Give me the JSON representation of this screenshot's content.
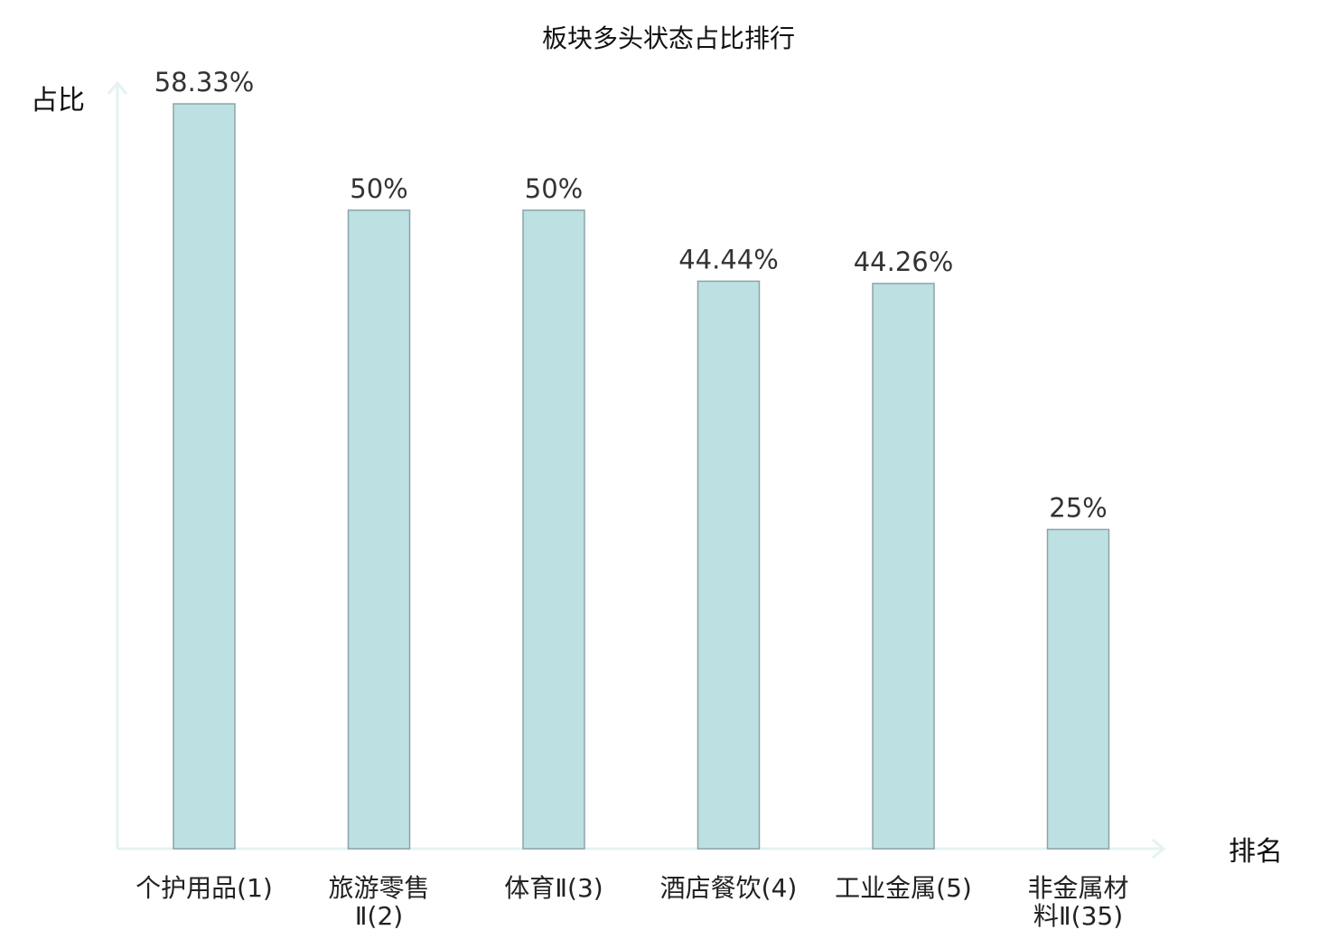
{
  "chart_data": {
    "type": "bar",
    "title": "板块多头状态占比排行",
    "ylabel": "占比",
    "xlabel": "排名",
    "categories": [
      [
        "个护用品(1)"
      ],
      [
        "旅游零售",
        "Ⅱ(2)"
      ],
      [
        "体育Ⅱ(3)"
      ],
      [
        "酒店餐饮(4)"
      ],
      [
        "工业金属(5)"
      ],
      [
        "非金属材",
        "料Ⅱ(35)"
      ]
    ],
    "values": [
      58.33,
      50,
      50,
      44.44,
      44.26,
      25
    ],
    "data_labels": [
      "58.33%",
      "50%",
      "50%",
      "44.44%",
      "44.26%",
      "25%"
    ],
    "highlight_index": 5,
    "ylim": [
      0,
      60
    ],
    "grid": false,
    "legend": "none"
  },
  "colors": {
    "bar_fill": "#bde0e3",
    "bar_stroke": "#8aa5a8",
    "axis": "#e3f3f1",
    "highlight_label": "#e8151b",
    "value_label": "#333333",
    "text": "#111111"
  }
}
